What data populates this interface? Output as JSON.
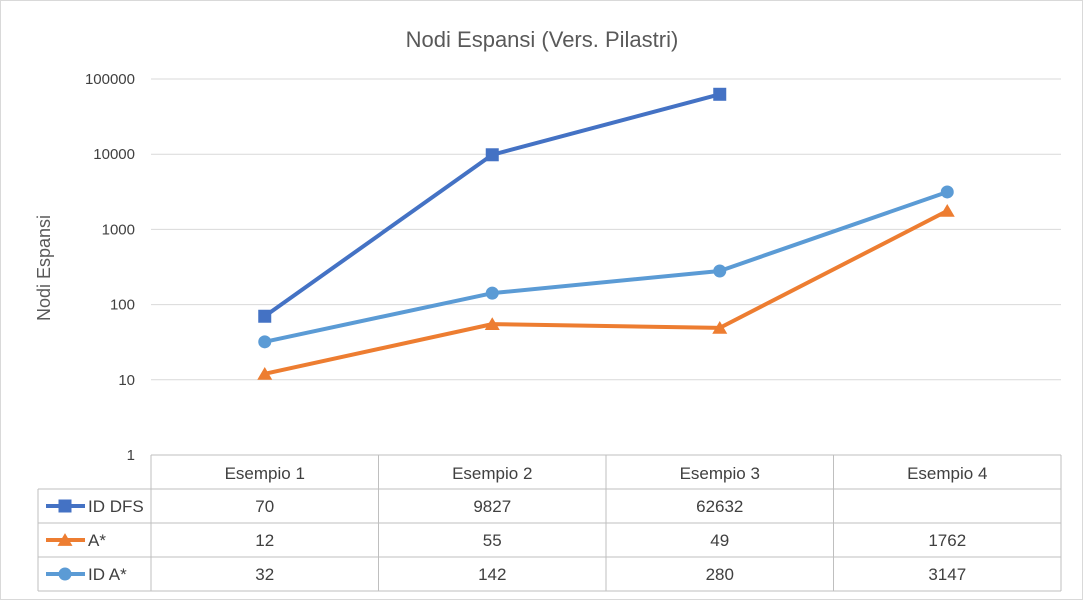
{
  "chart_data": {
    "type": "line",
    "title": "Nodi Espansi (Vers. Pilastri)",
    "ylabel": "Nodi Espansi",
    "xlabel": "",
    "yscale": "log",
    "ylim": [
      1,
      100000
    ],
    "yticks": [
      "100000",
      "10000",
      "1000",
      "100",
      "10",
      "1"
    ],
    "grid": true,
    "legend": "data-table",
    "categories": [
      "Esempio 1",
      "Esempio 2",
      "Esempio 3",
      "Esempio 4"
    ],
    "series": [
      {
        "name": "ID DFS",
        "values": [
          70,
          9827,
          62632,
          null
        ],
        "labels": [
          "70",
          "9827",
          "62632",
          ""
        ],
        "color": "#4472C4",
        "marker": "square"
      },
      {
        "name": "A*",
        "values": [
          12,
          55,
          49,
          1762
        ],
        "labels": [
          "12",
          "55",
          "49",
          "1762"
        ],
        "color": "#ED7D31",
        "marker": "triangle"
      },
      {
        "name": "ID A*",
        "values": [
          32,
          142,
          280,
          3147
        ],
        "labels": [
          "32",
          "142",
          "280",
          "3147"
        ],
        "color": "#5B9BD5",
        "marker": "circle"
      }
    ]
  }
}
